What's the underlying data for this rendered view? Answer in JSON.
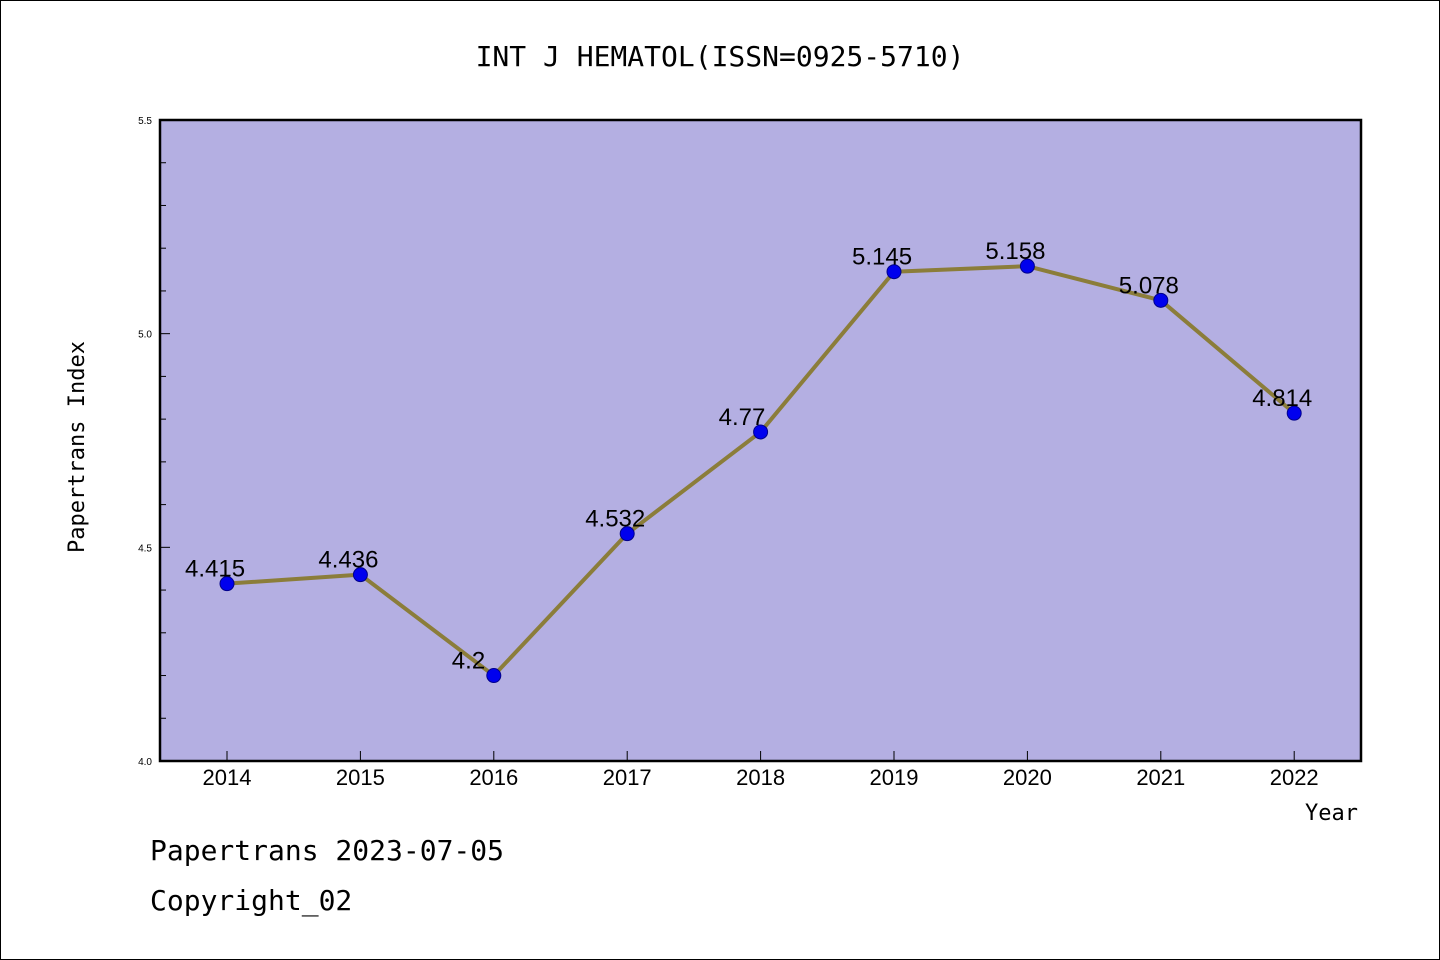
{
  "chart_data": {
    "type": "line",
    "title": "INT J HEMATOL(ISSN=0925-5710)",
    "xlabel": "Year",
    "ylabel": "Papertrans Index",
    "categories": [
      "2014",
      "2015",
      "2016",
      "2017",
      "2018",
      "2019",
      "2020",
      "2021",
      "2022"
    ],
    "values": [
      4.415,
      4.436,
      4.2,
      4.532,
      4.77,
      5.145,
      5.158,
      5.078,
      4.814
    ],
    "data_labels": [
      "4.415",
      "4.436",
      "4.2",
      "4.532",
      "4.77",
      "5.145",
      "5.158",
      "5.078",
      "4.814"
    ],
    "ylim": [
      4.0,
      5.5
    ],
    "y_ticks": [
      4.0,
      4.5,
      5.0,
      5.5
    ],
    "y_tick_labels": [
      "4.0",
      "4.5",
      "5.0",
      "5.5"
    ],
    "y_minor_step": 0.1,
    "grid": false,
    "legend": "none",
    "colors": {
      "plot_background": "#b4afe2",
      "line": "#8b7d3a",
      "marker_fill": "#0000ee",
      "marker_stroke": "#00008b"
    }
  },
  "footer": {
    "line1": "Papertrans 2023-07-05",
    "line2": "Copyright_02"
  }
}
